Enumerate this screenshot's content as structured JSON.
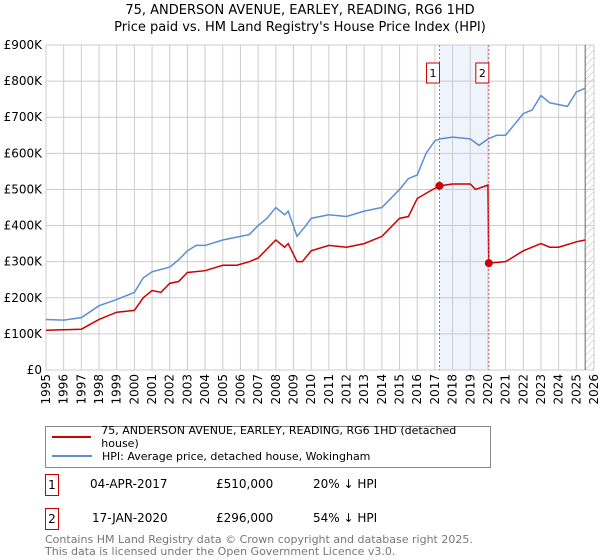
{
  "title": "75, ANDERSON AVENUE, EARLEY, READING, RG6 1HD",
  "subtitle": "Price paid vs. HM Land Registry's House Price Index (HPI)",
  "chart_data": {
    "type": "line",
    "title": "75, ANDERSON AVENUE, EARLEY, READING, RG6 1HD",
    "subtitle": "Price paid vs. HM Land Registry's House Price Index (HPI)",
    "xlim": [
      1995,
      2026
    ],
    "ylim": [
      0,
      900000
    ],
    "x_ticks": [
      "1995",
      "1996",
      "1997",
      "1998",
      "1999",
      "2000",
      "2001",
      "2002",
      "2003",
      "2004",
      "2005",
      "2006",
      "2007",
      "2008",
      "2009",
      "2010",
      "2011",
      "2012",
      "2013",
      "2014",
      "2015",
      "2016",
      "2017",
      "2018",
      "2019",
      "2020",
      "2021",
      "2022",
      "2023",
      "2024",
      "2025",
      "2026"
    ],
    "y_ticks": [
      "£0",
      "£100K",
      "£200K",
      "£300K",
      "£400K",
      "£500K",
      "£600K",
      "£700K",
      "£800K",
      "£900K"
    ],
    "grid": true,
    "legend_placement": "below",
    "series": [
      {
        "name": "75, ANDERSON AVENUE, EARLEY, READING, RG6 1HD (detached house)",
        "color": "#cc0000",
        "x": [
          1995,
          1997,
          1998,
          1999,
          2000,
          2000.5,
          2001,
          2001.5,
          2002,
          2002.5,
          2003,
          2004,
          2005,
          2005.8,
          2006.5,
          2007,
          2008,
          2008.5,
          2008.7,
          2009.2,
          2009.5,
          2010,
          2011,
          2012,
          2013,
          2014,
          2015,
          2015.5,
          2016,
          2016.7,
          2017.26,
          2018,
          2019,
          2019.3,
          2020.0,
          2020.05,
          2021,
          2022,
          2023,
          2023.5,
          2024,
          2025,
          2025.5
        ],
        "y": [
          110000,
          113000,
          140000,
          160000,
          165000,
          200000,
          220000,
          215000,
          240000,
          245000,
          270000,
          275000,
          290000,
          290000,
          300000,
          310000,
          360000,
          340000,
          350000,
          300000,
          300000,
          330000,
          345000,
          340000,
          350000,
          370000,
          420000,
          425000,
          475000,
          495000,
          510000,
          515000,
          515000,
          500000,
          512000,
          296000,
          300000,
          330000,
          350000,
          340000,
          340000,
          355000,
          360000
        ]
      },
      {
        "name": "HPI: Average price, detached house, Wokingham",
        "color": "#5b8fd4",
        "x": [
          1995,
          1996,
          1997,
          1998,
          1999,
          2000,
          2000.5,
          2001,
          2002,
          2002.5,
          2003,
          2003.5,
          2004,
          2005,
          2006,
          2006.5,
          2007,
          2007.5,
          2008,
          2008.5,
          2008.7,
          2009.2,
          2009.7,
          2010,
          2011,
          2012,
          2013,
          2014,
          2015,
          2015.5,
          2016,
          2016.5,
          2017,
          2017.3,
          2018,
          2019,
          2019.5,
          2020,
          2020.5,
          2021,
          2022,
          2022.5,
          2023,
          2023.5,
          2024,
          2024.5,
          2025,
          2025.5
        ],
        "y": [
          140000,
          138000,
          145000,
          178000,
          195000,
          215000,
          255000,
          272000,
          285000,
          305000,
          330000,
          345000,
          345000,
          360000,
          370000,
          375000,
          400000,
          420000,
          450000,
          430000,
          440000,
          370000,
          400000,
          420000,
          430000,
          425000,
          440000,
          450000,
          500000,
          530000,
          540000,
          600000,
          635000,
          640000,
          645000,
          640000,
          622000,
          640000,
          650000,
          650000,
          710000,
          720000,
          760000,
          740000,
          735000,
          730000,
          770000,
          780000
        ]
      }
    ],
    "sales": [
      {
        "label": "1",
        "x": 2017.26,
        "y": 510000
      },
      {
        "label": "2",
        "x": 2020.05,
        "y": 296000
      }
    ],
    "forecast_hatch_from": 2025.5
  },
  "legend": {
    "property": "75, ANDERSON AVENUE, EARLEY, READING, RG6 1HD (detached house)",
    "hpi": "HPI: Average price, detached house, Wokingham"
  },
  "transactions": [
    {
      "num": "1",
      "date": "04-APR-2017",
      "price": "£510,000",
      "hpi": "20% ↓ HPI"
    },
    {
      "num": "2",
      "date": "17-JAN-2020",
      "price": "£296,000",
      "hpi": "54% ↓ HPI"
    }
  ],
  "footer": [
    "Contains HM Land Registry data © Crown copyright and database right 2025.",
    "This data is licensed under the Open Government Licence v3.0."
  ]
}
